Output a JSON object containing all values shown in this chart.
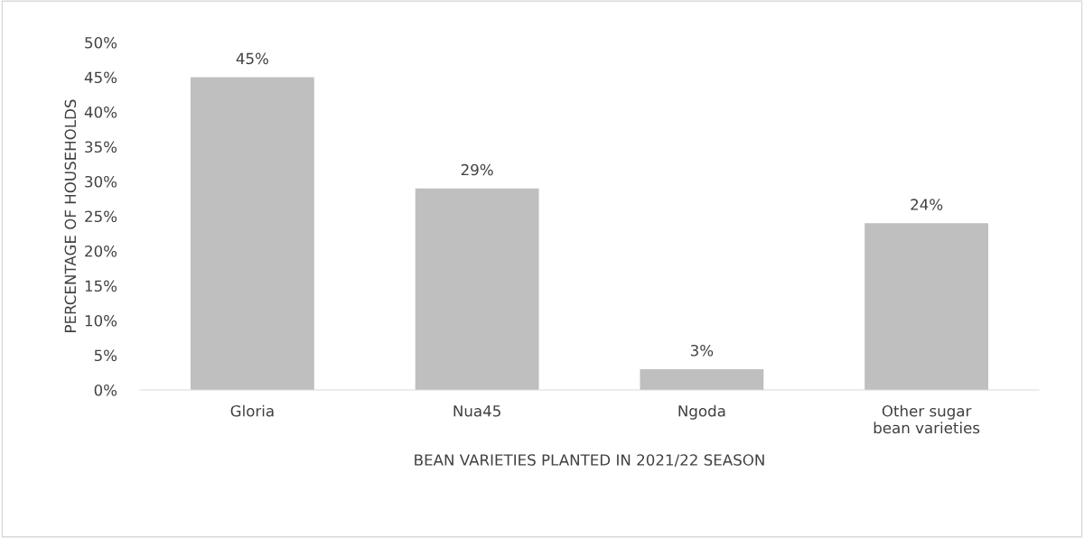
{
  "chart_data": {
    "type": "bar",
    "categories": [
      "Gloria",
      "Nua45",
      "Ngoda",
      "Other sugar bean varieties"
    ],
    "values": [
      45,
      29,
      3,
      24
    ],
    "value_labels": [
      "45%",
      "29%",
      "3%",
      "24%"
    ],
    "color": "#bfbfbf",
    "xlabel": "BEAN VARIETIES PLANTED IN 2021/22 SEASON",
    "ylabel": "PERCENTAGE OF HOUSEHOLDS",
    "ylim": [
      0,
      50
    ],
    "yticks": [
      {
        "value": 0,
        "label": "0%"
      },
      {
        "value": 5,
        "label": "5%"
      },
      {
        "value": 10,
        "label": "10%"
      },
      {
        "value": 15,
        "label": "15%"
      },
      {
        "value": 20,
        "label": "20%"
      },
      {
        "value": 25,
        "label": "25%"
      },
      {
        "value": 30,
        "label": "30%"
      },
      {
        "value": 35,
        "label": "35%"
      },
      {
        "value": 40,
        "label": "40%"
      },
      {
        "value": 45,
        "label": "45%"
      },
      {
        "value": 50,
        "label": "50%"
      }
    ],
    "grid": false
  }
}
